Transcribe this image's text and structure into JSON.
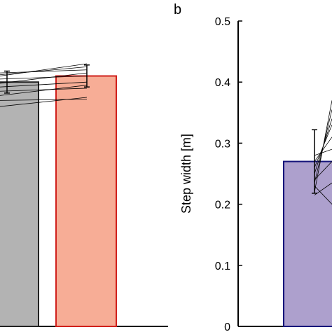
{
  "chart_data": [
    {
      "type": "bar",
      "panel_label": "",
      "ylabel": "",
      "ylim": [
        0,
        0.5
      ],
      "bars": [
        {
          "value": 0.4,
          "error": 0.018,
          "fill": "#b3b3b3",
          "stroke": "#222222"
        },
        {
          "value": 0.41,
          "error": 0.018,
          "fill": "#f7ad96",
          "stroke": "#d0201c"
        }
      ],
      "subject_lines": [
        [
          0.415,
          0.42
        ],
        [
          0.412,
          0.425
        ],
        [
          0.405,
          0.41
        ],
        [
          0.41,
          0.43
        ],
        [
          0.398,
          0.415
        ],
        [
          0.392,
          0.4
        ],
        [
          0.385,
          0.39
        ],
        [
          0.378,
          0.395
        ],
        [
          0.37,
          0.372
        ],
        [
          0.36,
          0.375
        ]
      ]
    },
    {
      "type": "bar",
      "panel_label": "b",
      "ylabel": "Step width [m]",
      "ylim": [
        0,
        0.5
      ],
      "yticks": [
        "0",
        "0.1",
        "0.2",
        "0.3",
        "0.4",
        "0.5"
      ],
      "bars": [
        {
          "value": 0.27,
          "error": 0.052,
          "fill": "#ada0cd",
          "stroke": "#14147a"
        }
      ],
      "subject_lines": [
        [
          0.22,
          0.37
        ],
        [
          0.235,
          0.355
        ],
        [
          0.25,
          0.34
        ],
        [
          0.26,
          0.33
        ],
        [
          0.27,
          0.31
        ],
        [
          0.28,
          0.29
        ],
        [
          0.24,
          0.27
        ],
        [
          0.215,
          0.235
        ],
        [
          0.23,
          0.2
        ]
      ]
    }
  ]
}
